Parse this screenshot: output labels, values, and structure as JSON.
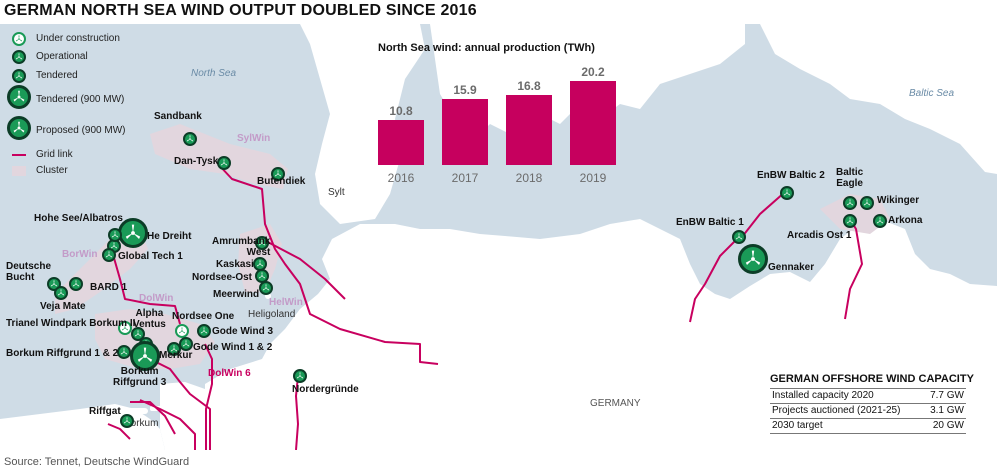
{
  "title": "GERMAN NORTH SEA WIND OUTPUT DOUBLED SINCE 2016",
  "legend": {
    "under_construction": "Under construction",
    "operational": "Operational",
    "tendered": "Tendered",
    "tendered_900": "Tendered (900 MW)",
    "proposed_900": "Proposed (900 MW)",
    "grid_link": "Grid link",
    "cluster": "Cluster"
  },
  "colors": {
    "land": "#ffffff",
    "sea": "#cfdce6",
    "grid_link": "#c8005f",
    "cluster": "#e2d6de",
    "wind_farm": "#1a9a57",
    "bars": "#c6005e"
  },
  "seas": {
    "north": "North Sea",
    "baltic": "Baltic Sea"
  },
  "places": {
    "sylt": "Sylt",
    "heligoland": "Heligoland",
    "borkum": "Borkum",
    "germany": "GERMANY"
  },
  "clusters": {
    "sylwin": "SylWin",
    "borwin": "BorWin",
    "dolwin": "DolWin",
    "helwin": "HelWin"
  },
  "grid_links": {
    "dolwin6": "DolWin 6"
  },
  "wind_farms": {
    "sandbank": "Sandbank",
    "dan_tysk": "Dan-Tysk",
    "butendiek": "Butendiek",
    "hohe_see": "Hohe See/Albatros",
    "he_dreiht": "He Dreiht",
    "global_tech": "Global Tech 1",
    "deutsche_bucht": "Deutsche\nBucht",
    "bard": "BARD 1",
    "veja_mate": "Veja Mate",
    "trianel": "Trianel Windpark Borkum II",
    "alpha_ventus": "Alpha\nVentus",
    "borkum_riffgrund12": "Borkum Riffgrund 1 & 2",
    "borkum_riffgrund3": "Borkum\nRiffgrund 3",
    "riffgat": "Riffgat",
    "nordsee_one": "Nordsee One",
    "gode_wind3": "Gode Wind 3",
    "gode_wind12": "Gode Wind 1 & 2",
    "merkur": "Merkur",
    "amrumbank": "Amrumbank\nWest",
    "kaskasi": "Kaskasi",
    "nordsee_ost": "Nordsee-Ost",
    "meerwind": "Meerwind",
    "nordergrunde": "Nordergründe",
    "enbw_baltic1": "EnBW Baltic 1",
    "enbw_baltic2": "EnBW Baltic 2",
    "gennaker": "Gennaker",
    "baltic_eagle": "Baltic\nEagle",
    "wikinger": "Wikinger",
    "arkona": "Arkona",
    "arcadis": "Arcadis Ost 1"
  },
  "chart_data": {
    "type": "bar",
    "title": "North Sea wind: annual production (TWh)",
    "categories": [
      "2016",
      "2017",
      "2018",
      "2019"
    ],
    "values": [
      10.8,
      15.9,
      16.8,
      20.2
    ],
    "value_labels": [
      "10.8",
      "15.9",
      "16.8",
      "20.2"
    ],
    "ylim": [
      0,
      20.2
    ]
  },
  "capacity_table": {
    "title": "GERMAN OFFSHORE WIND CAPACITY",
    "rows": [
      {
        "label": "Installed capacity 2020",
        "value": "7.7 GW"
      },
      {
        "label": "Projects auctioned (2021-25)",
        "value": "3.1 GW"
      },
      {
        "label": "2030 target",
        "value": "20 GW"
      }
    ]
  },
  "source": "Source: Tennet, Deutsche WindGuard"
}
